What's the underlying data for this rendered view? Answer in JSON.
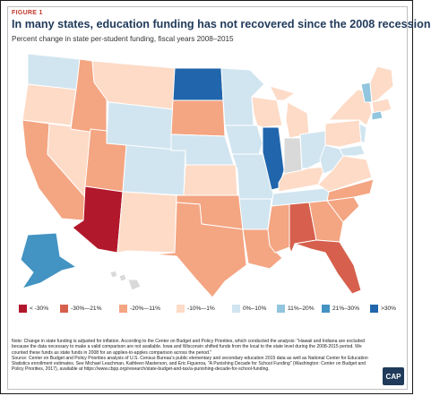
{
  "figure_label": "FIGURE 1",
  "title": "In many states, education funding has not recovered since the 2008 recession",
  "subtitle": "Percent change in state per-student funding, fiscal years 2008–2015",
  "legend": [
    {
      "label": "< -30%",
      "color": "#b2182b"
    },
    {
      "label": "-30%–-21%",
      "color": "#d6604d"
    },
    {
      "label": "-20%–-11%",
      "color": "#f4a582"
    },
    {
      "label": "-10%–-1%",
      "color": "#fddbc7"
    },
    {
      "label": "0%–10%",
      "color": "#d1e5f0"
    },
    {
      "label": "11%–20%",
      "color": "#92c5de"
    },
    {
      "label": "21%–30%",
      "color": "#4393c3"
    },
    {
      "label": ">30%",
      "color": "#2166ac"
    }
  ],
  "no_data_color": "#d9d9d9",
  "note": "Note: Change in state funding is adjusted for inflation. According to the Center on Budget and Policy Priorities, which conducted the analysis: \"Hawaii and Indiana are excluded because the data necessary to make a valid comparison are not available. Iowa and Wisconsin shifted funds from the local to the state level during the 2008-2015 period. We counted these funds as state funds in 2008 for an applies-to-apples comparison across the period.\"",
  "source": "Source: Center on Budget and Policy Priorities analysis of U.S. Census Bureau's public elementary and secondary education 2015 data as well as National Center for Education Statistics enrollment estimates. See Michael Leachman, Kathleen Masterson, and Eric Figueroa, \"A Punishing Decade for School Funding\" (Washington: Center on Budget and Policy Priorities, 2017), available at https://www.cbpp.org/research/state-budget-and-tax/a-punishing-decade-for-school-funding.",
  "logo": "CAP",
  "map_states": [
    {
      "name": "washington",
      "color": "#d1e5f0"
    },
    {
      "name": "oregon",
      "color": "#fddbc7"
    },
    {
      "name": "california",
      "color": "#f4a582"
    },
    {
      "name": "nevada",
      "color": "#fddbc7"
    },
    {
      "name": "idaho",
      "color": "#f4a582"
    },
    {
      "name": "montana",
      "color": "#fddbc7"
    },
    {
      "name": "wyoming",
      "color": "#d1e5f0"
    },
    {
      "name": "utah",
      "color": "#f4a582"
    },
    {
      "name": "arizona",
      "color": "#b2182b"
    },
    {
      "name": "colorado",
      "color": "#d1e5f0"
    },
    {
      "name": "new-mexico",
      "color": "#fddbc7"
    },
    {
      "name": "north-dakota",
      "color": "#2166ac"
    },
    {
      "name": "south-dakota",
      "color": "#f4a582"
    },
    {
      "name": "nebraska",
      "color": "#d1e5f0"
    },
    {
      "name": "kansas",
      "color": "#fddbc7"
    },
    {
      "name": "oklahoma",
      "color": "#f4a582"
    },
    {
      "name": "texas",
      "color": "#f4a582"
    },
    {
      "name": "minnesota",
      "color": "#d1e5f0"
    },
    {
      "name": "iowa",
      "color": "#d1e5f0"
    },
    {
      "name": "missouri",
      "color": "#d1e5f0"
    },
    {
      "name": "arkansas",
      "color": "#d1e5f0"
    },
    {
      "name": "louisiana",
      "color": "#f4a582"
    },
    {
      "name": "wisconsin",
      "color": "#fddbc7"
    },
    {
      "name": "illinois",
      "color": "#2166ac"
    },
    {
      "name": "michigan",
      "color": "#fddbc7"
    },
    {
      "name": "indiana",
      "color": "#d9d9d9"
    },
    {
      "name": "ohio",
      "color": "#d1e5f0"
    },
    {
      "name": "kentucky",
      "color": "#fddbc7"
    },
    {
      "name": "tennessee",
      "color": "#d1e5f0"
    },
    {
      "name": "mississippi",
      "color": "#f4a582"
    },
    {
      "name": "alabama",
      "color": "#d6604d"
    },
    {
      "name": "georgia",
      "color": "#f4a582"
    },
    {
      "name": "florida",
      "color": "#d6604d"
    },
    {
      "name": "south-carolina",
      "color": "#f4a582"
    },
    {
      "name": "north-carolina",
      "color": "#f4a582"
    },
    {
      "name": "virginia",
      "color": "#fddbc7"
    },
    {
      "name": "west-virginia",
      "color": "#d1e5f0"
    },
    {
      "name": "pennsylvania",
      "color": "#fddbc7"
    },
    {
      "name": "new-york",
      "color": "#fddbc7"
    },
    {
      "name": "new-england",
      "color": "#fddbc7"
    },
    {
      "name": "vermont",
      "color": "#92c5de"
    },
    {
      "name": "connecticut",
      "color": "#92c5de"
    },
    {
      "name": "new-jersey",
      "color": "#d1e5f0"
    },
    {
      "name": "maryland",
      "color": "#d1e5f0"
    },
    {
      "name": "alaska",
      "color": "#4393c3"
    },
    {
      "name": "hawaii",
      "color": "#d9d9d9"
    }
  ]
}
